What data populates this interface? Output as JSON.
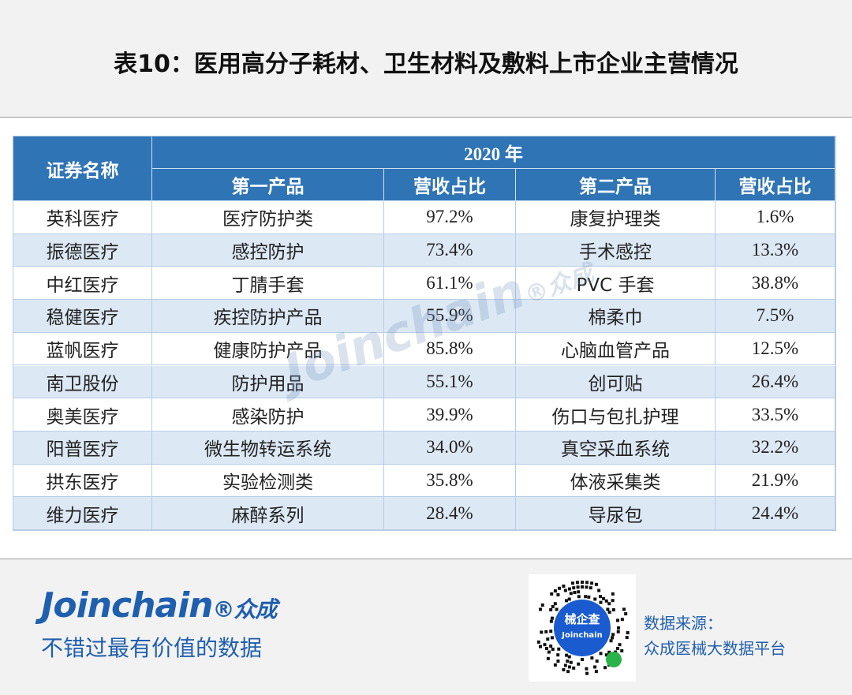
{
  "header": {
    "title": "表10：医用高分子耗材、卫生材料及敷料上市企业主营情况"
  },
  "table": {
    "group_header": "2020 年",
    "columns": [
      "证券名称",
      "第一产品",
      "营收占比",
      "第二产品",
      "营收占比"
    ],
    "rows": [
      [
        "英科医疗",
        "医疗防护类",
        "97.2%",
        "康复护理类",
        "1.6%"
      ],
      [
        "振德医疗",
        "感控防护",
        "73.4%",
        "手术感控",
        "13.3%"
      ],
      [
        "中红医疗",
        "丁腈手套",
        "61.1%",
        "PVC 手套",
        "38.8%"
      ],
      [
        "稳健医疗",
        "疾控防护产品",
        "55.9%",
        "棉柔巾",
        "7.5%"
      ],
      [
        "蓝帆医疗",
        "健康防护产品",
        "85.8%",
        "心脑血管产品",
        "12.5%"
      ],
      [
        "南卫股份",
        "防护用品",
        "55.1%",
        "创可贴",
        "26.4%"
      ],
      [
        "奥美医疗",
        "感染防护",
        "39.9%",
        "伤口与包扎护理",
        "33.5%"
      ],
      [
        "阳普医疗",
        "微生物转运系统",
        "34.0%",
        "真空采血系统",
        "32.2%"
      ],
      [
        "拱东医疗",
        "实验检测类",
        "35.8%",
        "体液采集类",
        "21.9%"
      ],
      [
        "维力医疗",
        "麻醉系列",
        "28.4%",
        "导尿包",
        "24.4%"
      ]
    ]
  },
  "watermark": {
    "brand": "Joinchain",
    "mark": "®众成"
  },
  "footer": {
    "brand": "Joinchain",
    "brand_mark": "®众成",
    "slogan": "不错过最有价值的数据",
    "qr_title": "械企查",
    "qr_subtitle": "Joinchain",
    "source_label": "数据来源：",
    "source": "众成医械大数据平台"
  }
}
